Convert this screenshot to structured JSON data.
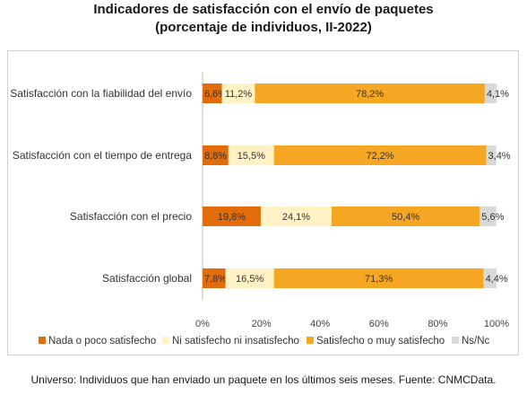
{
  "title_line1": "Indicadores de satisfacción con el envío de paquetes",
  "title_line2": "(porcentaje de individuos, II-2022)",
  "footer": "Universo: Individuos que han enviado un paquete en los últimos seis meses. Fuente: CNMCData.",
  "chart_data": {
    "type": "bar",
    "orientation": "horizontal",
    "stacked": true,
    "categories": [
      "Satisfacción con la fiabilidad del envío",
      "Satisfacción con el tiempo de entrega",
      "Satisfacción con el precio",
      "Satisfacción global"
    ],
    "series": [
      {
        "name": "Nada o poco satisfecho",
        "color": "#e36c0a",
        "values": [
          6.6,
          8.8,
          19.8,
          7.8
        ]
      },
      {
        "name": "Ni satisfecho ni insatisfecho",
        "color": "#fff2c4",
        "values": [
          11.2,
          15.5,
          24.1,
          16.5
        ]
      },
      {
        "name": "Satisfecho o muy satisfecho",
        "color": "#f5a623",
        "values": [
          78.2,
          72.2,
          50.4,
          71.3
        ]
      },
      {
        "name": "Ns/Nc",
        "color": "#d9d9d9",
        "values": [
          4.1,
          3.4,
          5.6,
          4.4
        ]
      }
    ],
    "data_labels": [
      [
        "6,6%",
        "11,2%",
        "78,2%",
        "4,1%"
      ],
      [
        "8,8%",
        "15,5%",
        "72,2%",
        "3,4%"
      ],
      [
        "19,8%",
        "24,1%",
        "50,4%",
        "5,6%"
      ],
      [
        "7,8%",
        "16,5%",
        "71,3%",
        "4,4%"
      ]
    ],
    "xlim": [
      0,
      100
    ],
    "xticks": [
      "0%",
      "20%",
      "40%",
      "60%",
      "80%",
      "100%"
    ],
    "legend_position": "bottom",
    "grid": false
  }
}
